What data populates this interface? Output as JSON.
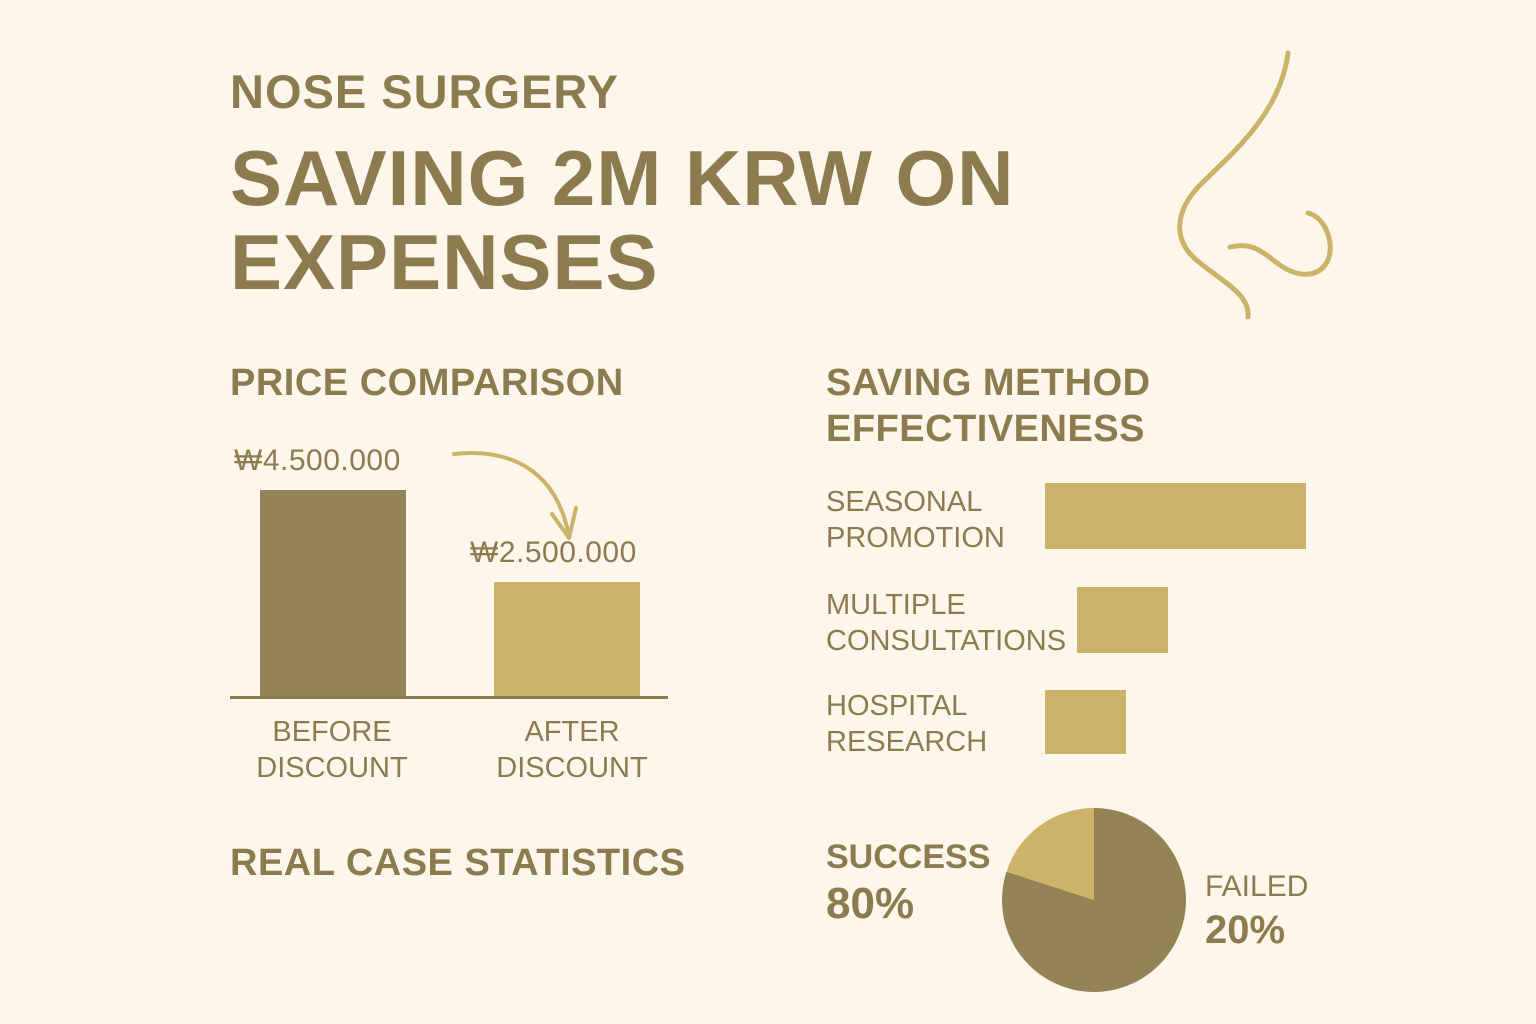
{
  "header": {
    "kicker": "NOSE SURGERY",
    "title": "SAVING 2M KRW ON EXPENSES"
  },
  "icons": {
    "nose": "nose-outline-icon"
  },
  "colors": {
    "background": "#fcf7ea",
    "text": "#8d7b50",
    "dark_gold": "#958358",
    "light_gold": "#cbb46a"
  },
  "chart_data": [
    {
      "type": "bar",
      "title": "PRICE COMPARISON",
      "categories": [
        "BEFORE DISCOUNT",
        "AFTER DISCOUNT"
      ],
      "values": [
        4500000,
        2500000
      ],
      "value_labels": [
        "₩4.500.000",
        "₩2.500.000"
      ],
      "colors": [
        "#958358",
        "#cbb46a"
      ],
      "ylim": [
        0,
        4500000
      ]
    },
    {
      "type": "bar",
      "orientation": "horizontal",
      "title": "SAVING METHOD EFFECTIVENESS",
      "categories": [
        "SEASONAL PROMOTION",
        "MULTIPLE CONSULTATIONS",
        "HOSPITAL RESEARCH"
      ],
      "values": [
        100,
        47,
        31
      ]
    },
    {
      "type": "pie",
      "title": "REAL CASE STATISTICS",
      "slices": [
        {
          "label": "SUCCESS",
          "value": 80,
          "value_label": "80%",
          "color": "#958358"
        },
        {
          "label": "FAILED",
          "value": 20,
          "value_label": "20%",
          "color": "#cbb46a"
        }
      ]
    }
  ]
}
